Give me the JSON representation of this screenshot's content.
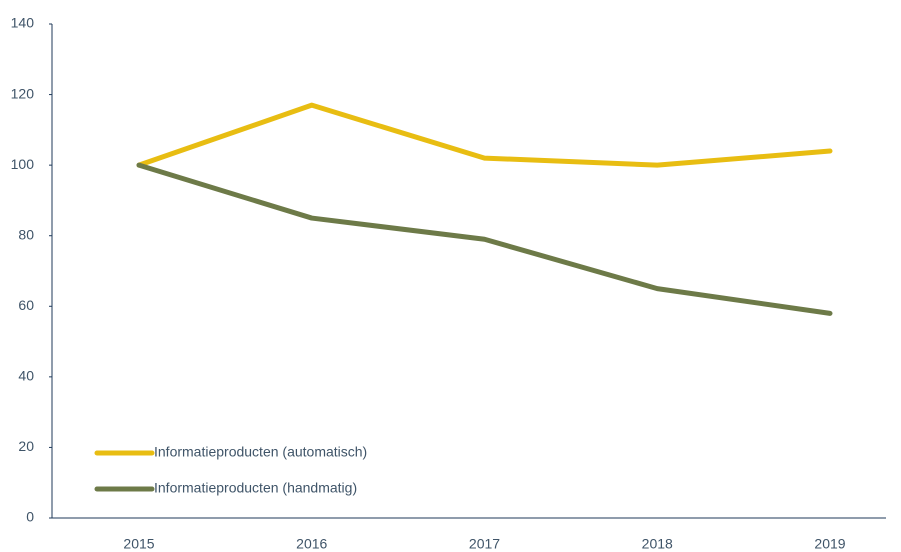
{
  "chart_data": {
    "type": "line",
    "categories": [
      "2015",
      "2016",
      "2017",
      "2018",
      "2019"
    ],
    "series": [
      {
        "name": "Informatieproducten (automatisch)",
        "color": "#e8bd12",
        "values": [
          100,
          117,
          102,
          100,
          104
        ]
      },
      {
        "name": "Informatieproducten (handmatig)",
        "color": "#6d7a48",
        "values": [
          100,
          85,
          79,
          65,
          58
        ]
      }
    ],
    "ylim": [
      0,
      140
    ],
    "yticks": [
      0,
      20,
      40,
      60,
      80,
      100,
      120,
      140
    ],
    "grid": false,
    "legend": "lower left"
  }
}
